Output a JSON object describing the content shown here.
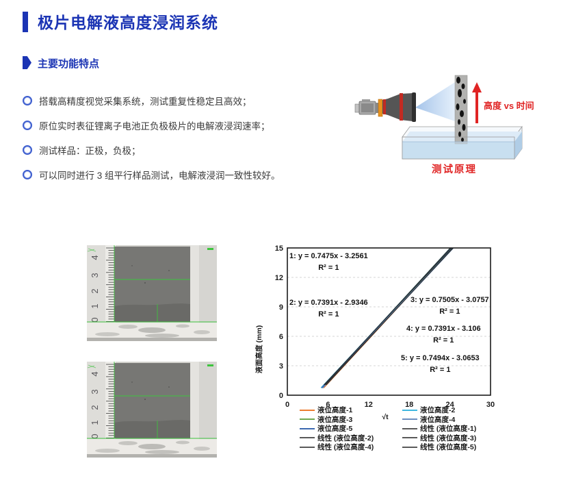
{
  "page": {
    "title": "极片电解液高度浸润系统",
    "section_title": "主要功能特点"
  },
  "features": [
    "搭载高精度视觉采集系统，测试重复性稳定且高效；",
    "原位实时表征锂离子电池正负极极片的电解液浸润速率；",
    "测试样品：正极，负极；",
    "可以同时进行 3 组平行样品测试，电解液浸润一致性较好。"
  ],
  "diagram": {
    "arrow_label": "高度 vs 时间",
    "caption": "测试原理",
    "accent_red": "#e02424"
  },
  "sample_image": {
    "ruler_numbers": [
      "4",
      "3",
      "2",
      "1",
      "0"
    ],
    "overlay_color": "#3ec43e"
  },
  "chart_data": {
    "type": "line",
    "title": "",
    "xlabel": "√t",
    "ylabel": "液面高度 (mm)",
    "xlim": [
      0,
      30
    ],
    "ylim": [
      0,
      15
    ],
    "xticks": [
      0,
      6,
      12,
      18,
      24,
      30
    ],
    "yticks_top_to_bottom": [
      15,
      12,
      9,
      6,
      3,
      0
    ],
    "grid": "horizontal-dashed",
    "series": [
      {
        "name": "液位高度-1",
        "slope": 0.7475,
        "intercept": -3.2561,
        "r2": 1,
        "color": "#ED7D31"
      },
      {
        "name": "液位高度-2",
        "slope": 0.7391,
        "intercept": -2.9346,
        "r2": 1,
        "color": "#3FB8E0"
      },
      {
        "name": "液位高度-3",
        "slope": 0.7505,
        "intercept": -3.0757,
        "r2": 1,
        "color": "#6FA84F"
      },
      {
        "name": "液位高度-4",
        "slope": 0.7391,
        "intercept": -3.106,
        "r2": 1,
        "color": "#6C8EBF"
      },
      {
        "name": "液位高度-5",
        "slope": 0.7494,
        "intercept": -3.0653,
        "r2": 1,
        "color": "#3B69B0"
      }
    ],
    "fit_color": "#2b2b2b",
    "annotations": [
      {
        "label": "1:  y = 0.7475x - 3.2561",
        "r2": "R² = 1"
      },
      {
        "label": "2:  y = 0.7391x - 2.9346",
        "r2": "R² = 1"
      },
      {
        "label": "3:  y = 0.7505x - 3.0757",
        "r2": "R² = 1"
      },
      {
        "label": "4:  y = 0.7391x - 3.106",
        "r2": "R² = 1"
      },
      {
        "label": "5:  y = 0.7494x - 3.0653",
        "r2": "R² = 1"
      }
    ],
    "legend": {
      "position": "bottom-two-columns",
      "left": [
        {
          "label": "液位高度-1",
          "color": "#ED7D31"
        },
        {
          "label": "液位高度-3",
          "color": "#6FA84F"
        },
        {
          "label": "液位高度-5",
          "color": "#3B69B0"
        },
        {
          "label": "线性 (液位高度-2)",
          "color": "#595959"
        },
        {
          "label": "线性 (液位高度-4)",
          "color": "#595959"
        }
      ],
      "right": [
        {
          "label": "液位高度-2",
          "color": "#3FB8E0"
        },
        {
          "label": "液位高度-4",
          "color": "#6C8EBF"
        },
        {
          "label": "线性 (液位高度-1)",
          "color": "#595959"
        },
        {
          "label": "线性 (液位高度-3)",
          "color": "#595959"
        },
        {
          "label": "线性 (液位高度-5)",
          "color": "#595959"
        }
      ]
    }
  }
}
